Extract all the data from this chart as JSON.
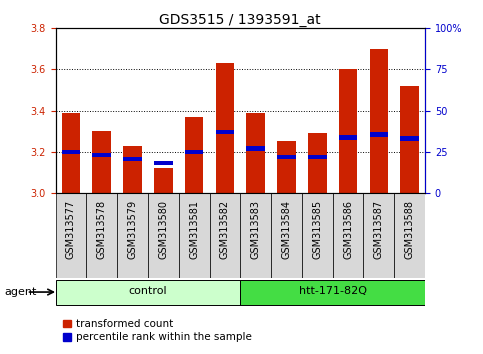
{
  "title": "GDS3515 / 1393591_at",
  "samples": [
    "GSM313577",
    "GSM313578",
    "GSM313579",
    "GSM313580",
    "GSM313581",
    "GSM313582",
    "GSM313583",
    "GSM313584",
    "GSM313585",
    "GSM313586",
    "GSM313587",
    "GSM313588"
  ],
  "transformed_count": [
    3.39,
    3.3,
    3.23,
    3.12,
    3.37,
    3.63,
    3.39,
    3.25,
    3.29,
    3.6,
    3.7,
    3.52
  ],
  "percentile_rank": [
    3.2,
    3.185,
    3.165,
    3.145,
    3.2,
    3.295,
    3.215,
    3.175,
    3.175,
    3.27,
    3.285,
    3.265
  ],
  "ymin": 3.0,
  "ymax": 3.8,
  "yticks_left": [
    3.0,
    3.2,
    3.4,
    3.6,
    3.8
  ],
  "yticks_right": [
    0,
    25,
    50,
    75,
    100
  ],
  "y_right_labels": [
    "0",
    "25",
    "50",
    "75",
    "100%"
  ],
  "groups": [
    {
      "label": "control",
      "start": 0,
      "end": 6,
      "color": "#ccffcc"
    },
    {
      "label": "htt-171-82Q",
      "start": 6,
      "end": 12,
      "color": "#44dd44"
    }
  ],
  "agent_label": "agent",
  "bar_color_red": "#cc2200",
  "bar_color_blue": "#0000cc",
  "bar_width": 0.6,
  "bg_color": "#ffffff",
  "xlabel_bg": "#d8d8d8",
  "left_tick_color": "#cc2200",
  "right_tick_color": "#0000cc",
  "title_fontsize": 10,
  "tick_fontsize": 7,
  "legend_red": "transformed count",
  "legend_blue": "percentile rank within the sample"
}
